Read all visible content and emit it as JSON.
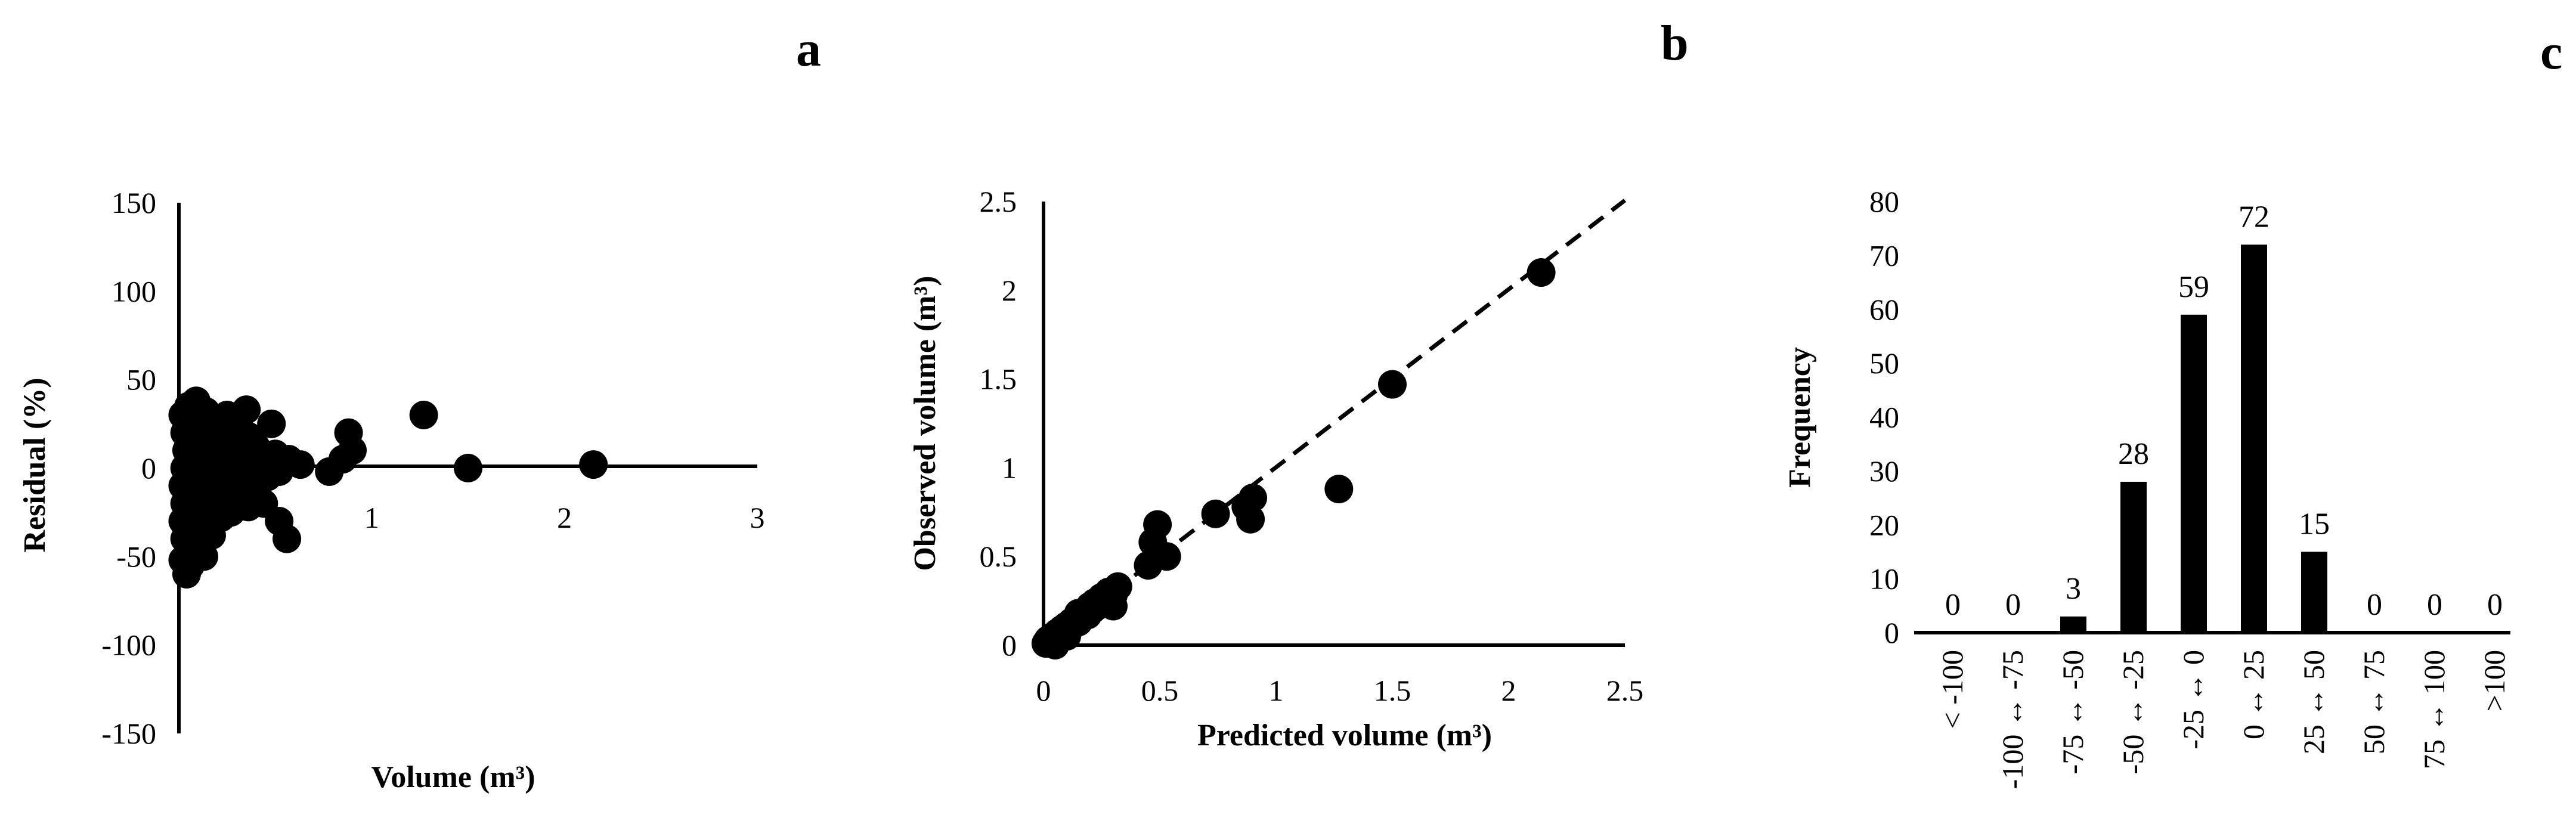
{
  "chart_data": [
    {
      "panel": "a",
      "type": "scatter",
      "title": "",
      "xlabel": "Volume (m³)",
      "ylabel": "Residual (%)",
      "xlim": [
        0,
        3
      ],
      "ylim": [
        -150,
        150
      ],
      "x_ticks": [
        "1",
        "2",
        "3"
      ],
      "y_ticks": [
        "150",
        "100",
        "50",
        "0",
        "-50",
        "-100",
        "-150"
      ],
      "points": [
        {
          "x": 0.02,
          "y": 30
        },
        {
          "x": 0.03,
          "y": 20
        },
        {
          "x": 0.04,
          "y": 10
        },
        {
          "x": 0.03,
          "y": 0
        },
        {
          "x": 0.02,
          "y": -10
        },
        {
          "x": 0.03,
          "y": -20
        },
        {
          "x": 0.02,
          "y": -30
        },
        {
          "x": 0.03,
          "y": -40
        },
        {
          "x": 0.02,
          "y": -52
        },
        {
          "x": 0.04,
          "y": -60
        },
        {
          "x": 0.05,
          "y": 35
        },
        {
          "x": 0.06,
          "y": 25
        },
        {
          "x": 0.07,
          "y": 15
        },
        {
          "x": 0.06,
          "y": 5
        },
        {
          "x": 0.05,
          "y": -5
        },
        {
          "x": 0.07,
          "y": -15
        },
        {
          "x": 0.06,
          "y": -25
        },
        {
          "x": 0.05,
          "y": -35
        },
        {
          "x": 0.07,
          "y": -45
        },
        {
          "x": 0.06,
          "y": -55
        },
        {
          "x": 0.09,
          "y": 38
        },
        {
          "x": 0.1,
          "y": 28
        },
        {
          "x": 0.11,
          "y": 18
        },
        {
          "x": 0.1,
          "y": 8
        },
        {
          "x": 0.09,
          "y": -2
        },
        {
          "x": 0.11,
          "y": -12
        },
        {
          "x": 0.1,
          "y": -22
        },
        {
          "x": 0.12,
          "y": -32
        },
        {
          "x": 0.11,
          "y": -42
        },
        {
          "x": 0.13,
          "y": -50
        },
        {
          "x": 0.14,
          "y": 32
        },
        {
          "x": 0.15,
          "y": 20
        },
        {
          "x": 0.16,
          "y": 10
        },
        {
          "x": 0.15,
          "y": 0
        },
        {
          "x": 0.17,
          "y": -10
        },
        {
          "x": 0.16,
          "y": -20
        },
        {
          "x": 0.18,
          "y": -30
        },
        {
          "x": 0.17,
          "y": -38
        },
        {
          "x": 0.2,
          "y": 25
        },
        {
          "x": 0.21,
          "y": 12
        },
        {
          "x": 0.22,
          "y": 2
        },
        {
          "x": 0.21,
          "y": -8
        },
        {
          "x": 0.23,
          "y": -18
        },
        {
          "x": 0.22,
          "y": -28
        },
        {
          "x": 0.25,
          "y": 30
        },
        {
          "x": 0.26,
          "y": 15
        },
        {
          "x": 0.27,
          "y": 5
        },
        {
          "x": 0.26,
          "y": -5
        },
        {
          "x": 0.28,
          "y": -15
        },
        {
          "x": 0.27,
          "y": -25
        },
        {
          "x": 0.3,
          "y": 22
        },
        {
          "x": 0.32,
          "y": 8
        },
        {
          "x": 0.31,
          "y": -3
        },
        {
          "x": 0.33,
          "y": -12
        },
        {
          "x": 0.35,
          "y": 33
        },
        {
          "x": 0.36,
          "y": 18
        },
        {
          "x": 0.37,
          "y": 3
        },
        {
          "x": 0.38,
          "y": -8
        },
        {
          "x": 0.36,
          "y": -22
        },
        {
          "x": 0.4,
          "y": 12
        },
        {
          "x": 0.42,
          "y": 0
        },
        {
          "x": 0.41,
          "y": -10
        },
        {
          "x": 0.45,
          "y": 5
        },
        {
          "x": 0.46,
          "y": -5
        },
        {
          "x": 0.5,
          "y": 8
        },
        {
          "x": 0.52,
          "y": -2
        },
        {
          "x": 0.48,
          "y": 25
        },
        {
          "x": 0.44,
          "y": -20
        },
        {
          "x": 0.52,
          "y": -30
        },
        {
          "x": 0.56,
          "y": -40
        },
        {
          "x": 0.57,
          "y": 5
        },
        {
          "x": 0.63,
          "y": 2
        },
        {
          "x": 0.78,
          "y": -2
        },
        {
          "x": 0.85,
          "y": 5
        },
        {
          "x": 0.88,
          "y": 20
        },
        {
          "x": 0.9,
          "y": 10
        },
        {
          "x": 1.27,
          "y": 30
        },
        {
          "x": 1.5,
          "y": 0
        },
        {
          "x": 2.15,
          "y": 2
        }
      ]
    },
    {
      "panel": "b",
      "type": "scatter",
      "title": "",
      "xlabel": "Predicted volume (m³)",
      "ylabel": "Observed volume (m³)",
      "xlim": [
        0,
        2.5
      ],
      "ylim": [
        0,
        2.5
      ],
      "x_ticks": [
        "0",
        "0.5",
        "1",
        "1.5",
        "2",
        "2.5"
      ],
      "y_ticks": [
        "2.5",
        "2",
        "1.5",
        "1",
        "0.5",
        "0"
      ],
      "reference_line": "1:1 dashed",
      "points": [
        {
          "x": 0.01,
          "y": 0.01
        },
        {
          "x": 0.02,
          "y": 0.03
        },
        {
          "x": 0.03,
          "y": 0.02
        },
        {
          "x": 0.04,
          "y": 0.05
        },
        {
          "x": 0.05,
          "y": 0.04
        },
        {
          "x": 0.06,
          "y": 0.07
        },
        {
          "x": 0.07,
          "y": 0.05
        },
        {
          "x": 0.08,
          "y": 0.09
        },
        {
          "x": 0.09,
          "y": 0.08
        },
        {
          "x": 0.1,
          "y": 0.11
        },
        {
          "x": 0.11,
          "y": 0.09
        },
        {
          "x": 0.12,
          "y": 0.13
        },
        {
          "x": 0.13,
          "y": 0.12
        },
        {
          "x": 0.14,
          "y": 0.15
        },
        {
          "x": 0.15,
          "y": 0.13
        },
        {
          "x": 0.16,
          "y": 0.17
        },
        {
          "x": 0.17,
          "y": 0.16
        },
        {
          "x": 0.18,
          "y": 0.19
        },
        {
          "x": 0.19,
          "y": 0.17
        },
        {
          "x": 0.2,
          "y": 0.22
        },
        {
          "x": 0.21,
          "y": 0.2
        },
        {
          "x": 0.22,
          "y": 0.24
        },
        {
          "x": 0.23,
          "y": 0.22
        },
        {
          "x": 0.25,
          "y": 0.27
        },
        {
          "x": 0.26,
          "y": 0.25
        },
        {
          "x": 0.28,
          "y": 0.3
        },
        {
          "x": 0.3,
          "y": 0.28
        },
        {
          "x": 0.32,
          "y": 0.33
        },
        {
          "x": 0.3,
          "y": 0.22
        },
        {
          "x": 0.05,
          "y": 0.0
        },
        {
          "x": 0.1,
          "y": 0.05
        },
        {
          "x": 0.15,
          "y": 0.18
        },
        {
          "x": 0.45,
          "y": 0.45
        },
        {
          "x": 0.47,
          "y": 0.58
        },
        {
          "x": 0.49,
          "y": 0.68
        },
        {
          "x": 0.53,
          "y": 0.5
        },
        {
          "x": 0.74,
          "y": 0.74
        },
        {
          "x": 0.87,
          "y": 0.78
        },
        {
          "x": 0.9,
          "y": 0.83
        },
        {
          "x": 0.89,
          "y": 0.71
        },
        {
          "x": 1.27,
          "y": 0.88
        },
        {
          "x": 1.5,
          "y": 1.47
        },
        {
          "x": 2.14,
          "y": 2.1
        }
      ]
    },
    {
      "panel": "c",
      "type": "bar",
      "title": "",
      "xlabel": "",
      "ylabel": "Frequency",
      "ylim": [
        0,
        80
      ],
      "y_ticks": [
        "80",
        "70",
        "60",
        "50",
        "40",
        "30",
        "20",
        "10",
        "0"
      ],
      "categories": [
        "< -100",
        "-100 ↔ -75",
        "-75 ↔ -50",
        "-50 ↔ -25",
        "-25 ↔ 0",
        "0 ↔ 25",
        "25 ↔ 50",
        "50 ↔ 75",
        "75 ↔ 100",
        ">100"
      ],
      "values": [
        0,
        0,
        3,
        28,
        59,
        72,
        15,
        0,
        0,
        0
      ],
      "value_labels": [
        "0",
        "0",
        "3",
        "28",
        "59",
        "72",
        "15",
        "0",
        "0",
        "0"
      ]
    }
  ],
  "panel_letters": {
    "a": "a",
    "b": "b",
    "c": "c"
  },
  "colors": {
    "ink": "#000000",
    "background": "#ffffff"
  }
}
